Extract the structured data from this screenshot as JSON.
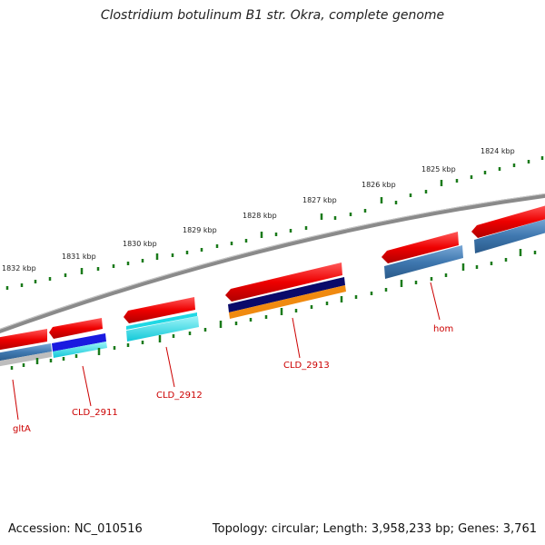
{
  "title": "Clostridium botulinum B1 str. Okra, complete genome",
  "footer": {
    "accession": "Accession: NC_010516",
    "topology": "Topology: circular; Length: 3,958,233 bp; Genes: 3,761"
  },
  "colors": {
    "backbone": "#7a7a7a",
    "forward_gene": "#ee0000",
    "reverse_strand_blue": "#3f78b0",
    "ticks": "#1a7a1a",
    "labels": "#cc0000",
    "navy": "#0a0a6a",
    "orange": "#f08a10",
    "cyan": "#22dde8",
    "royal_blue": "#1a1ae0",
    "grey": "#b8b8b8"
  },
  "kbp_labels": [
    "1824 kbp",
    "1825 kbp",
    "1826 kbp",
    "1827 kbp",
    "1828 kbp",
    "1829 kbp",
    "1830 kbp",
    "1831 kbp",
    "1832 kbp"
  ],
  "gene_labels": [
    "gltA",
    "CLD_2911",
    "CLD_2912",
    "CLD_2913",
    "hom"
  ]
}
